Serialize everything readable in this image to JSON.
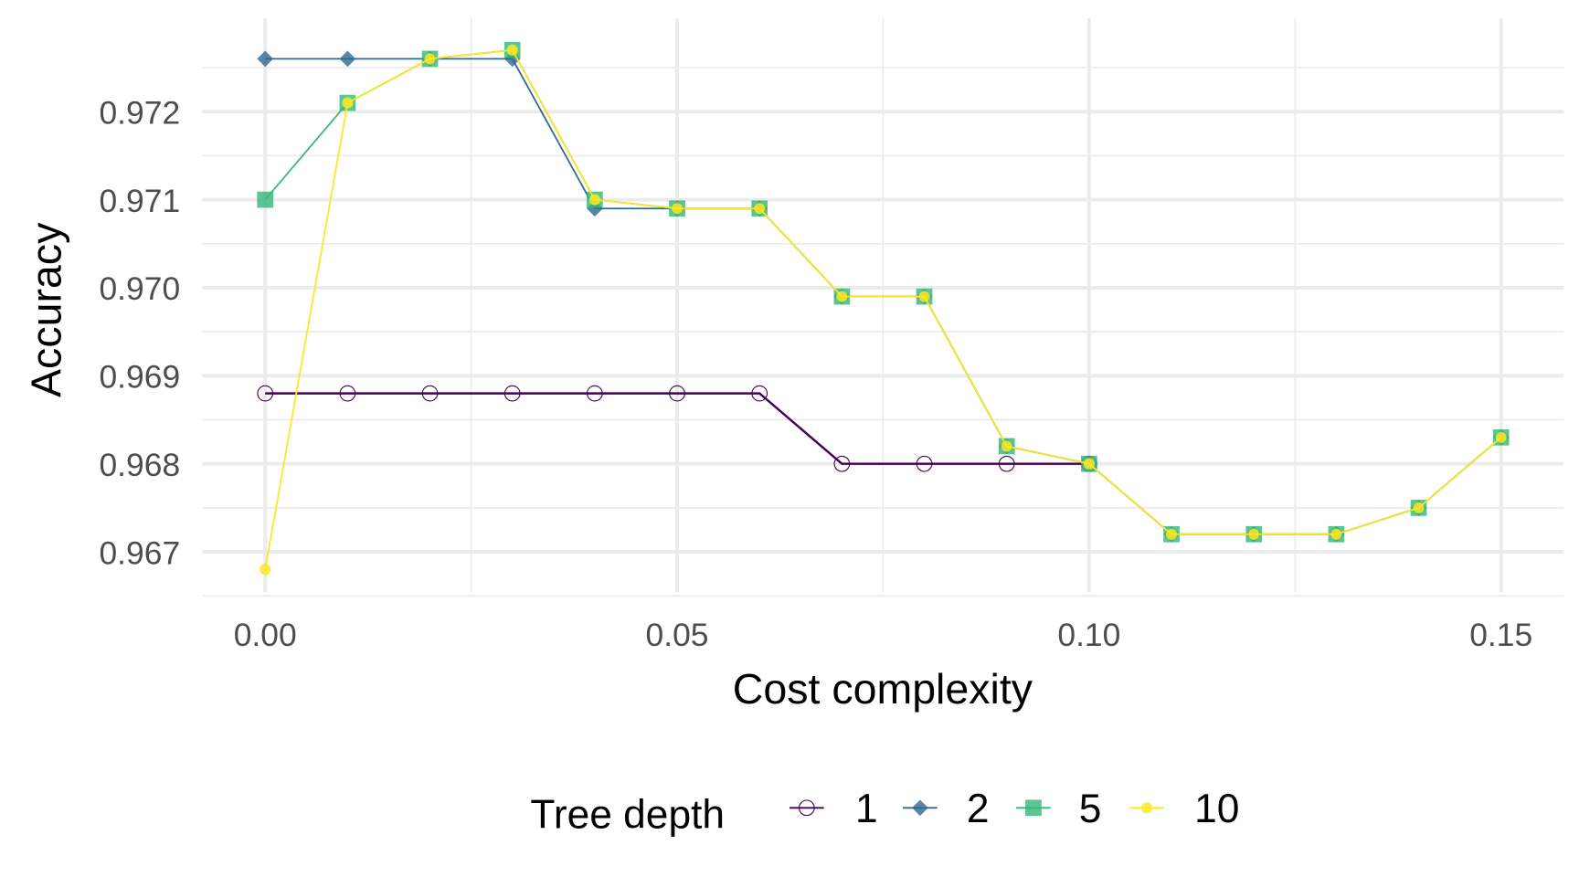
{
  "chart_data": {
    "type": "line",
    "title": "",
    "xlabel": "Cost complexity",
    "ylabel": "Accuracy",
    "xlim": [
      -0.0075,
      0.1575
    ],
    "ylim": [
      0.96658,
      0.97282
    ],
    "xticks": [
      "0.00",
      "0.05",
      "0.10",
      "0.15"
    ],
    "xtick_values": [
      0,
      0.05,
      0.1,
      0.15
    ],
    "yticks": [
      "0.967",
      "0.968",
      "0.969",
      "0.970",
      "0.971",
      "0.972"
    ],
    "ytick_values": [
      0.967,
      0.968,
      0.969,
      0.97,
      0.971,
      0.972
    ],
    "grid": true,
    "legend": {
      "title": "Tree depth",
      "placement": "bottom"
    },
    "series": [
      {
        "name": "1",
        "color": "#440154",
        "marker": "open-circle",
        "x": [
          0,
          0.01,
          0.02,
          0.03,
          0.04,
          0.05,
          0.06,
          0.07,
          0.08,
          0.09,
          0.1
        ],
        "values": [
          0.9688,
          0.9688,
          0.9688,
          0.9688,
          0.9688,
          0.9688,
          0.9688,
          0.968,
          0.968,
          0.968,
          0.968
        ]
      },
      {
        "name": "2",
        "color": "#31688e",
        "marker": "diamond",
        "x": [
          0,
          0.01,
          0.02,
          0.03,
          0.04,
          0.05,
          0.06,
          0.07,
          0.08,
          0.09,
          0.1,
          0.11,
          0.12,
          0.13,
          0.14,
          0.15
        ],
        "values": [
          0.9726,
          0.9726,
          0.9726,
          0.9726,
          0.9709,
          0.9709,
          0.9709,
          0.9699,
          0.9699,
          0.9682,
          0.968,
          0.9672,
          0.9672,
          0.9672,
          0.9675,
          0.9683
        ]
      },
      {
        "name": "5",
        "color": "#35b779",
        "marker": "square",
        "x": [
          0,
          0.01,
          0.02,
          0.03,
          0.04,
          0.05,
          0.06,
          0.07,
          0.08,
          0.09,
          0.1,
          0.11,
          0.12,
          0.13,
          0.14,
          0.15
        ],
        "values": [
          0.971,
          0.9721,
          0.9726,
          0.9727,
          0.971,
          0.9709,
          0.9709,
          0.9699,
          0.9699,
          0.9682,
          0.968,
          0.9672,
          0.9672,
          0.9672,
          0.9675,
          0.9683
        ]
      },
      {
        "name": "10",
        "color": "#fde725",
        "marker": "circle",
        "x": [
          0,
          0.01,
          0.02,
          0.03,
          0.04,
          0.05,
          0.06,
          0.07,
          0.08,
          0.09,
          0.1,
          0.11,
          0.12,
          0.13,
          0.14,
          0.15
        ],
        "values": [
          0.9668,
          0.9721,
          0.9726,
          0.9727,
          0.971,
          0.9709,
          0.9709,
          0.9699,
          0.9699,
          0.9682,
          0.968,
          0.9672,
          0.9672,
          0.9672,
          0.9675,
          0.9683
        ]
      }
    ]
  }
}
